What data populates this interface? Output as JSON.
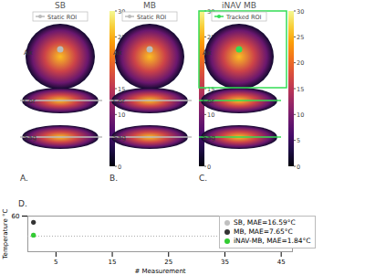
{
  "panels": [
    {
      "label": "A.",
      "title": "SB",
      "roi": "Static ROI",
      "roi_color": "#bbbbbb"
    },
    {
      "label": "B.",
      "title": "MB",
      "roi": "Static ROI",
      "roi_color": "#bbbbbb"
    },
    {
      "label": "C.",
      "title": "iNAV MB",
      "roi": "Tracked ROI",
      "roi_color": "#33dd55"
    }
  ],
  "views": [
    "Ax",
    "Cor",
    "Sag"
  ],
  "colorbar": {
    "range": [
      0,
      30
    ],
    "ticks": [
      0,
      5,
      10,
      15,
      20,
      25,
      30
    ]
  },
  "chart_data": {
    "type": "scatter",
    "panel_label": "D.",
    "x_label": "# Measurement",
    "y_label": "Temperature °C",
    "xlim": [
      0,
      47
    ],
    "xticks": [
      5,
      15,
      25,
      35,
      45
    ],
    "ylim": [
      -20,
      60
    ],
    "yticks": [
      60
    ],
    "reference_line": 15,
    "marker": "circle",
    "legend": "top-right",
    "x": [
      1
    ],
    "series": [
      {
        "name": "SB, MAE=16.59°C",
        "color": "#c0c0c0",
        "values": [
          17
        ]
      },
      {
        "name": "MB, MAE=7.65°C",
        "color": "#333333",
        "values": [
          46
        ]
      },
      {
        "name": "iNAV-MB, MAE=1.84°C",
        "color": "#33cc33",
        "values": [
          17
        ]
      }
    ]
  }
}
